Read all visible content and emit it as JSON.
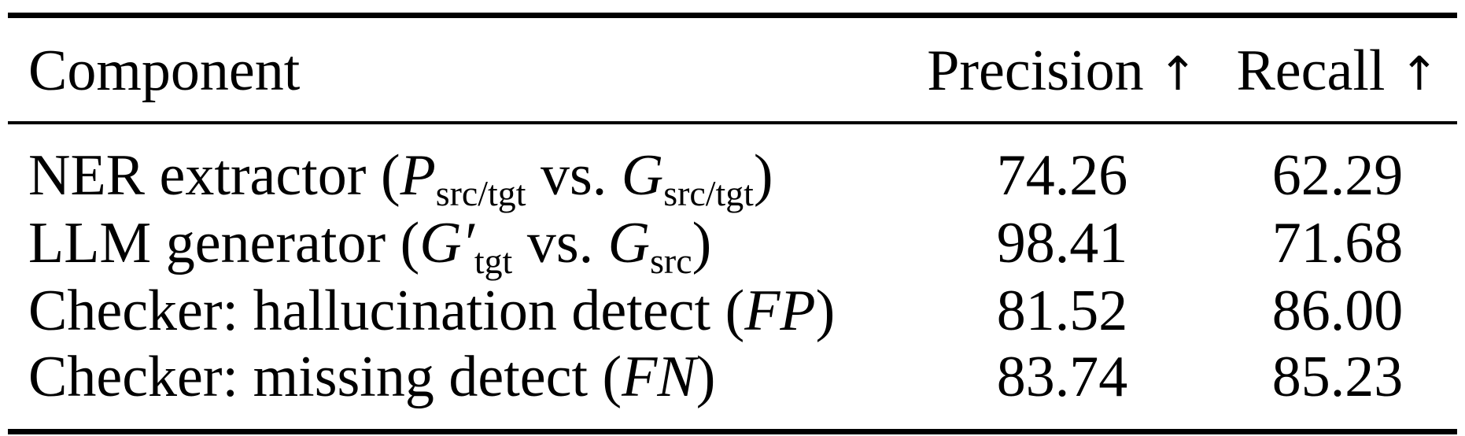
{
  "table": {
    "headers": {
      "component": "Component",
      "precision": "Precision",
      "recall": "Recall",
      "arrow": "↑"
    },
    "rows": [
      {
        "label": "NER extractor (",
        "math": [
          {
            "v": "P",
            "sub": "src/tgt"
          },
          {
            "t": " vs. "
          },
          {
            "v": "G",
            "sub": "src/tgt"
          }
        ],
        "close": ")",
        "precision": "74.26",
        "recall": "62.29",
        "m1": "P",
        "s1": "src/tgt",
        "mid": " vs. ",
        "m2": "G",
        "s2": "src/tgt"
      },
      {
        "label": "LLM generator (",
        "close": ")",
        "precision": "98.41",
        "recall": "71.68",
        "m1": "G′",
        "s1": "tgt",
        "mid": " vs. ",
        "m2": "G",
        "s2": "src"
      },
      {
        "label": "Checker: hallucination detect (",
        "close": ")",
        "precision": "81.52",
        "recall": "86.00",
        "m1": "FP"
      },
      {
        "label": "Checker: missing detect (",
        "close": ")",
        "precision": "83.74",
        "recall": "85.23",
        "m1": "FN"
      }
    ]
  }
}
